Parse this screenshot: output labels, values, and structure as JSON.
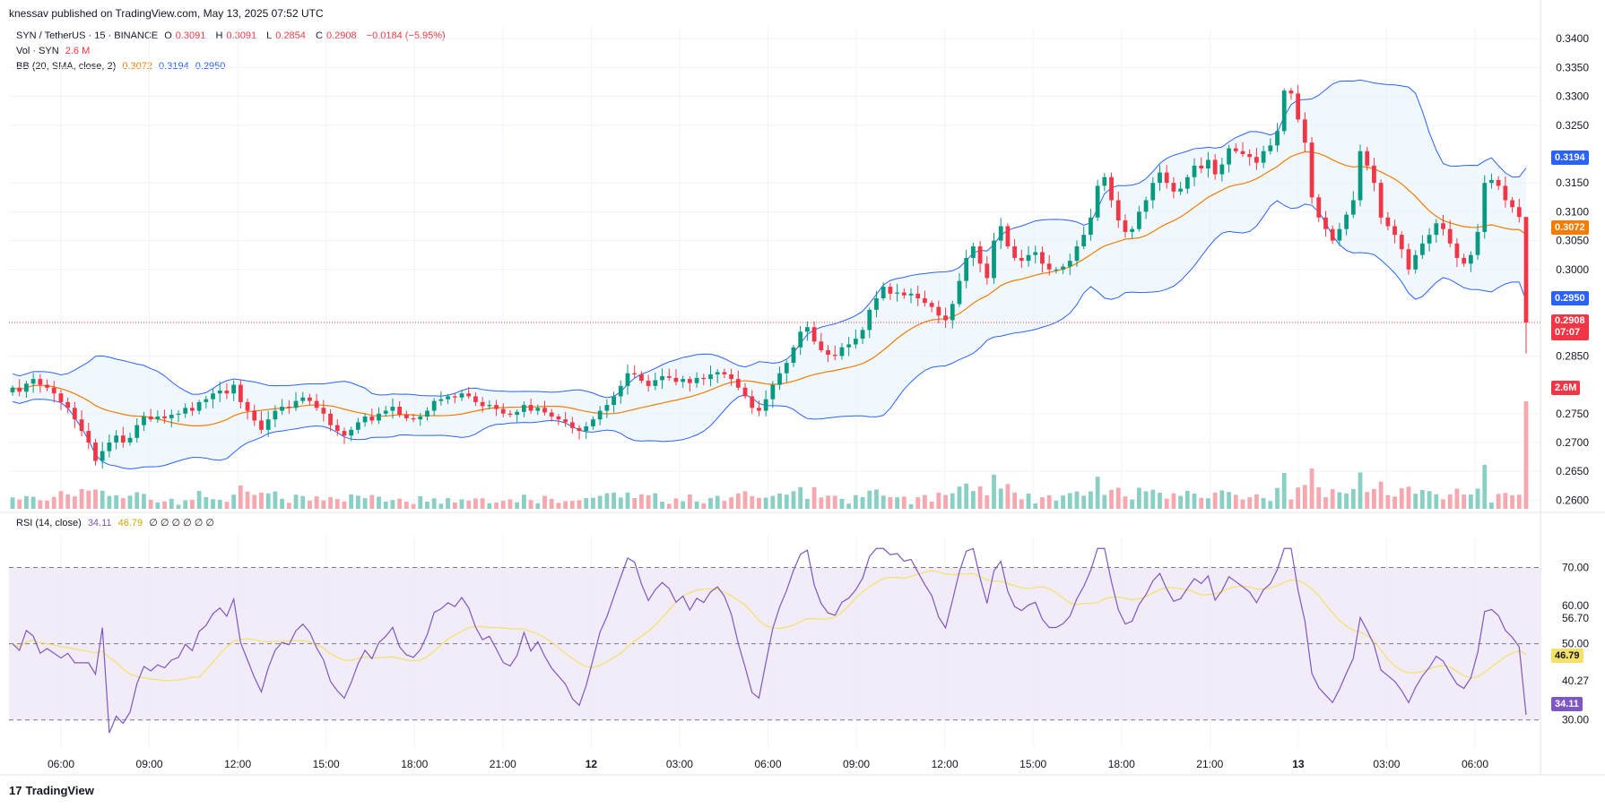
{
  "header": {
    "published": "knessav published on TradingView.com, May 13, 2025 07:52 UTC"
  },
  "legend": {
    "symbol": "SYN / TetherUS · 15 · BINANCE",
    "o_label": "O",
    "o": "0.3091",
    "h_label": "H",
    "h": "0.3091",
    "l_label": "L",
    "l": "0.2854",
    "c_label": "C",
    "c": "0.2908",
    "change": "−0.0184 (−5.95%)",
    "vol_label": "Vol · SYN",
    "vol": "2.6 M",
    "bb_label": "BB (20, SMA, close, 2)",
    "bb_basis": "0.3072",
    "bb_upper": "0.3194",
    "bb_lower": "0.2950",
    "rsi_label": "RSI (14, close)",
    "rsi": "34.11",
    "rsi_ma": "46.79",
    "rsi_extra": "∅ ∅ ∅ ∅ ∅ ∅"
  },
  "price_axis": {
    "ticks": [
      "0.3400",
      "0.3350",
      "0.3300",
      "0.3250",
      "0.3150",
      "0.3100",
      "0.3050",
      "0.3000",
      "0.2850",
      "0.2750",
      "0.2700",
      "0.2650",
      "0.2600"
    ],
    "badge_upper": "0.3194",
    "badge_basis": "0.3072",
    "badge_lower": "0.2950",
    "badge_last": "0.2908",
    "badge_countdown": "07:07",
    "badge_volume": "2.6M"
  },
  "rsi_axis": {
    "ticks": [
      "70.00",
      "60.00",
      "56.70",
      "50.00",
      "40.27",
      "30.00"
    ],
    "badge_ma": "46.79",
    "badge_rsi": "34.11"
  },
  "time_axis": {
    "labels": [
      "06:00",
      "09:00",
      "12:00",
      "15:00",
      "18:00",
      "21:00",
      "12",
      "03:00",
      "06:00",
      "09:00",
      "12:00",
      "15:00",
      "18:00",
      "21:00",
      "13",
      "03:00",
      "06:00"
    ]
  },
  "footer": {
    "brand": "TradingView",
    "logo": "17"
  },
  "colors": {
    "up": "#089981",
    "down": "#f23645",
    "basis": "#f57c00",
    "band": "#2962ff",
    "band_fill": "#e3f2fd",
    "rsi": "#7e57c2",
    "rsi_ma": "#f5e06a",
    "rsi_fill": "#ede7f6"
  },
  "chart_data": {
    "type": "candlestick",
    "symbol": "SYN / TetherUS",
    "interval": "15",
    "exchange": "BINANCE",
    "y_range": [
      0.2585,
      0.3405
    ],
    "rsi_range": [
      25,
      76
    ],
    "grid": true,
    "last": {
      "open": 0.3091,
      "high": 0.3091,
      "low": 0.2854,
      "close": 0.2908
    },
    "closes": [
      0.2795,
      0.2788,
      0.2802,
      0.281,
      0.28,
      0.2795,
      0.2785,
      0.277,
      0.276,
      0.274,
      0.272,
      0.27,
      0.2668,
      0.2685,
      0.27,
      0.2712,
      0.27,
      0.2708,
      0.273,
      0.2745,
      0.274,
      0.2745,
      0.2742,
      0.2748,
      0.275,
      0.276,
      0.2755,
      0.277,
      0.2775,
      0.2785,
      0.279,
      0.2785,
      0.28,
      0.277,
      0.2755,
      0.2738,
      0.2722,
      0.274,
      0.2755,
      0.2762,
      0.276,
      0.2772,
      0.2778,
      0.2772,
      0.276,
      0.275,
      0.273,
      0.272,
      0.2712,
      0.2722,
      0.2735,
      0.2745,
      0.2738,
      0.275,
      0.2755,
      0.2762,
      0.2748,
      0.2742,
      0.274,
      0.2745,
      0.2755,
      0.2772,
      0.2775,
      0.278,
      0.2778,
      0.2785,
      0.278,
      0.277,
      0.2763,
      0.2765,
      0.2758,
      0.275,
      0.2748,
      0.2753,
      0.2765,
      0.2755,
      0.276,
      0.2752,
      0.2745,
      0.274,
      0.2735,
      0.2725,
      0.272,
      0.2728,
      0.274,
      0.2755,
      0.2765,
      0.278,
      0.2798,
      0.282,
      0.2818,
      0.2807,
      0.2798,
      0.2808,
      0.2815,
      0.2812,
      0.2805,
      0.281,
      0.2803,
      0.2812,
      0.281,
      0.2818,
      0.2822,
      0.2818,
      0.281,
      0.2795,
      0.278,
      0.276,
      0.2755,
      0.2775,
      0.28,
      0.282,
      0.2838,
      0.2865,
      0.2892,
      0.29,
      0.2875,
      0.286,
      0.2852,
      0.285,
      0.2865,
      0.287,
      0.288,
      0.2895,
      0.293,
      0.295,
      0.297,
      0.2958,
      0.296,
      0.2955,
      0.2958,
      0.295,
      0.2942,
      0.2935,
      0.292,
      0.2912,
      0.294,
      0.298,
      0.302,
      0.304,
      0.301,
      0.2985,
      0.305,
      0.3075,
      0.304,
      0.302,
      0.3015,
      0.3025,
      0.303,
      0.301,
      0.3,
      0.3,
      0.3005,
      0.3015,
      0.304,
      0.306,
      0.309,
      0.3145,
      0.316,
      0.312,
      0.3085,
      0.3065,
      0.307,
      0.31,
      0.312,
      0.315,
      0.3168,
      0.315,
      0.3135,
      0.314,
      0.316,
      0.318,
      0.3175,
      0.319,
      0.3165,
      0.3182,
      0.321,
      0.3205,
      0.32,
      0.3195,
      0.3185,
      0.3205,
      0.3215,
      0.324,
      0.331,
      0.3305,
      0.326,
      0.322,
      0.3125,
      0.309,
      0.307,
      0.305,
      0.307,
      0.3095,
      0.312,
      0.3205,
      0.318,
      0.315,
      0.309,
      0.3075,
      0.306,
      0.3035,
      0.3,
      0.3025,
      0.3045,
      0.306,
      0.308,
      0.307,
      0.3045,
      0.302,
      0.301,
      0.3025,
      0.3065,
      0.315,
      0.3155,
      0.3145,
      0.312,
      0.3108,
      0.3091,
      0.2908
    ],
    "volume_range": [
      0,
      2.6
    ],
    "rsi_last": 34.11,
    "rsi_ma_last": 46.79,
    "bb_last": {
      "basis": 0.3072,
      "upper": 0.3194,
      "lower": 0.295
    }
  }
}
